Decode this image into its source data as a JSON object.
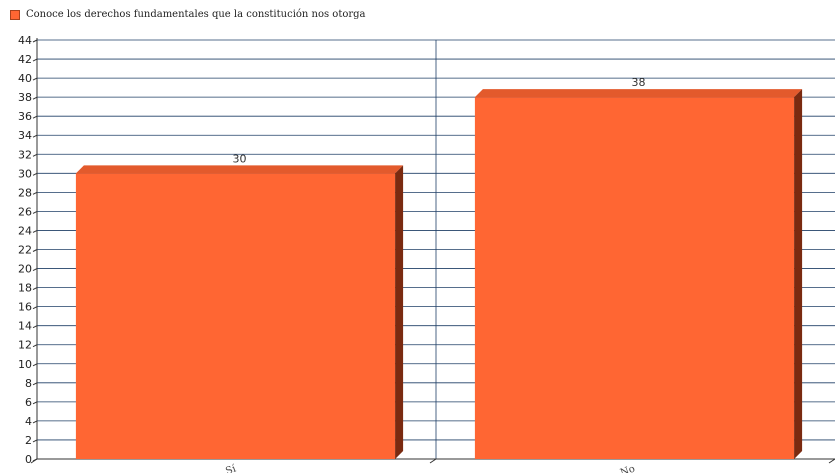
{
  "chart_data": {
    "type": "bar",
    "title": "",
    "xlabel": "",
    "ylabel": "",
    "categories": [
      "Sí",
      "No"
    ],
    "series": [
      {
        "name": "Conoce los derechos fundamentales que la constitución nos otorga",
        "values": [
          30,
          38
        ]
      }
    ],
    "ylim": [
      0,
      44
    ],
    "y_tick_step": 2,
    "grid": true,
    "legend_position": "top-left",
    "bar_style": "3d",
    "colors": {
      "bar_front": "#ff6633",
      "bar_top": "#e35a2c",
      "bar_side": "#7a2a10",
      "grid": "#1f3f66",
      "axis": "#333333"
    }
  }
}
